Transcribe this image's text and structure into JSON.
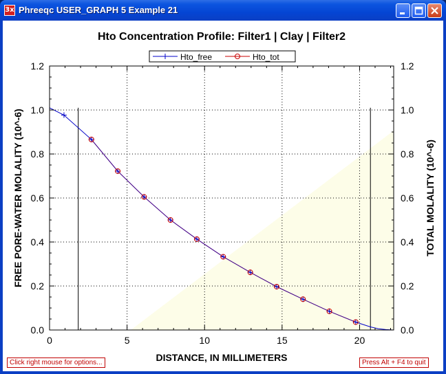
{
  "window": {
    "title": "Phreeqc USER_GRAPH 5 Example 21",
    "app_icon_label": "3x",
    "buttons": [
      "minimize-icon",
      "maximize-icon",
      "close-icon"
    ]
  },
  "status_bar": {
    "left_hint": "Click right mouse for options...",
    "right_hint": "Press Alt + F4 to quit"
  },
  "chart_data": {
    "type": "line",
    "title": "Hto Concentration Profile: Filter1 | Clay | Filter2",
    "xlabel": "DISTANCE, IN MILLIMETERS",
    "ylabel": "FREE PORE-WATER MOLALITY (10^-6)",
    "y2label": "TOTAL MOLALITY (10^-6)",
    "xlim": [
      0,
      22.2
    ],
    "ylim": [
      0,
      1.2
    ],
    "y2lim": [
      0,
      1.2
    ],
    "xticks": [
      0,
      5,
      10,
      15,
      20
    ],
    "xtick_labels": [
      "0",
      "5",
      "10",
      "15",
      "20"
    ],
    "yticks": [
      0,
      0.2,
      0.4,
      0.6,
      0.8,
      1.0,
      1.2
    ],
    "ytick_labels": [
      "0.0",
      "0.2",
      "0.4",
      "0.6",
      "0.8",
      "1.0",
      "1.2"
    ],
    "grid": true,
    "legend_position": "top-center",
    "filter_boundaries": [
      1.85,
      20.7
    ],
    "series": [
      {
        "name": "Hto_free",
        "color": "#0000c8",
        "marker": "plus",
        "x": [
          0,
          0.93,
          2.7,
          4.4,
          6.1,
          7.8,
          9.5,
          11.2,
          12.95,
          14.65,
          16.35,
          18.05,
          19.75,
          20.7,
          21.2,
          21.7,
          22.2
        ],
        "y": [
          1.01,
          0.977,
          0.866,
          0.722,
          0.605,
          0.5,
          0.413,
          0.333,
          0.262,
          0.197,
          0.14,
          0.085,
          0.036,
          0.014,
          0.006,
          0.002,
          0.0
        ]
      },
      {
        "name": "Hto_tot",
        "color": "#c80000",
        "marker": "circle",
        "x": [
          2.7,
          4.4,
          6.1,
          7.8,
          9.5,
          11.2,
          12.95,
          14.65,
          16.35,
          18.05,
          19.75
        ],
        "y": [
          0.866,
          0.722,
          0.605,
          0.5,
          0.413,
          0.333,
          0.262,
          0.197,
          0.14,
          0.085,
          0.036
        ]
      }
    ]
  }
}
